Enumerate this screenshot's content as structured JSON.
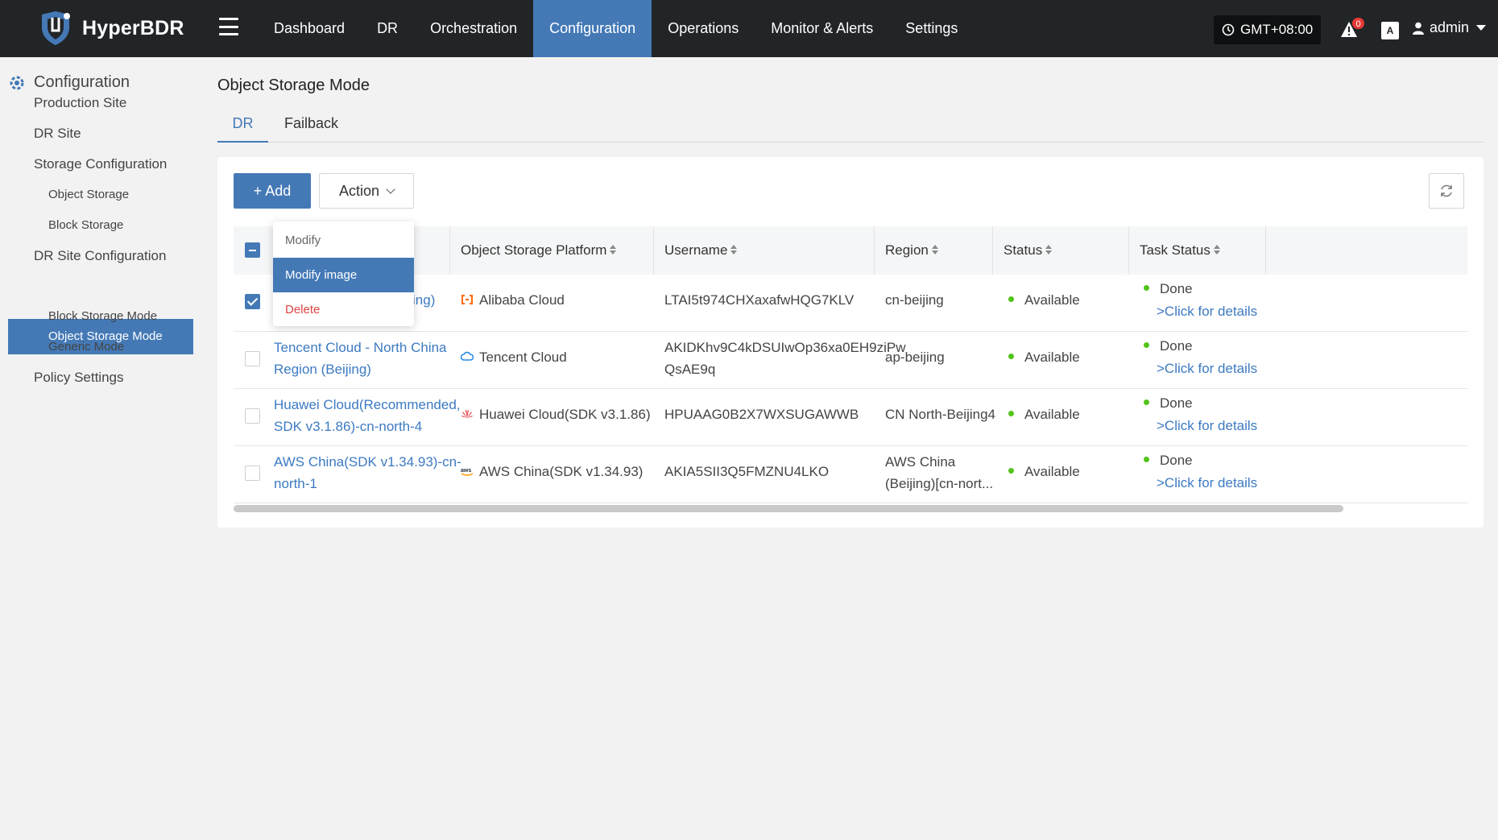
{
  "app": {
    "name": "HyperBDR"
  },
  "nav": {
    "items": [
      "Dashboard",
      "DR",
      "Orchestration",
      "Configuration",
      "Operations",
      "Monitor & Alerts",
      "Settings"
    ],
    "active": "Configuration"
  },
  "header": {
    "timezone": "GMT+08:00",
    "alert_count": "0",
    "lang_icon": "A",
    "user": "admin"
  },
  "sidebar": {
    "title": "Configuration",
    "items": {
      "production_site": "Production Site",
      "dr_site": "DR Site",
      "storage_configuration": "Storage Configuration",
      "object_storage": "Object Storage",
      "block_storage": "Block Storage",
      "dr_site_configuration": "DR Site Configuration",
      "object_storage_mode": "Object Storage Mode",
      "block_storage_mode": "Block Storage Mode",
      "generic_mode": "Generic Mode",
      "policy_settings": "Policy Settings"
    }
  },
  "page": {
    "title": "Object Storage Mode",
    "tabs": [
      "DR",
      "Failback"
    ]
  },
  "toolbar": {
    "add_label": "+ Add",
    "action_label": "Action"
  },
  "dropdown": {
    "items": [
      "Modify",
      "Modify image",
      "Delete"
    ]
  },
  "table": {
    "headers": {
      "platform": "Object Storage Platform",
      "username": "Username",
      "region": "Region",
      "status": "Status",
      "task_status": "Task Status"
    },
    "rows": [
      {
        "name_l1": "(Beijing)",
        "name_l2": "",
        "platform": "Alibaba Cloud",
        "username_l1": "LTAI5t974CHXaxafwHQG7KLV",
        "username_l2": "",
        "region_l1": "cn-beijing",
        "region_l2": "",
        "status": "Available",
        "task_status": "Done",
        "task_link": ">Click for details",
        "checked": true
      },
      {
        "name_l1": "Tencent Cloud - North China",
        "name_l2": "Region (Beijing)",
        "platform": "Tencent Cloud",
        "username_l1": "AKIDKhv9C4kDSUIwOp36xa0EH9ziPw",
        "username_l2": "QsAE9q",
        "region_l1": "ap-beijing",
        "region_l2": "",
        "status": "Available",
        "task_status": "Done",
        "task_link": ">Click for details",
        "checked": false
      },
      {
        "name_l1": "Huawei Cloud(Recommended,",
        "name_l2": "SDK v3.1.86)-cn-north-4",
        "platform": "Huawei Cloud(SDK v3.1.86)",
        "username_l1": "HPUAAG0B2X7WXSUGAWWB",
        "username_l2": "",
        "region_l1": "CN North-Beijing4",
        "region_l2": "",
        "status": "Available",
        "task_status": "Done",
        "task_link": ">Click for details",
        "checked": false
      },
      {
        "name_l1": "AWS China(SDK v1.34.93)-cn-",
        "name_l2": "north-1",
        "platform": "AWS China(SDK v1.34.93)",
        "username_l1": "AKIA5SII3Q5FMZNU4LKO",
        "username_l2": "",
        "region_l1": "AWS China",
        "region_l2": "(Beijing)[cn-nort...",
        "status": "Available",
        "task_status": "Done",
        "task_link": ">Click for details",
        "checked": false
      }
    ]
  },
  "colors": {
    "accent": "#4479b6",
    "topbar": "#222527",
    "available": "#52c41a",
    "danger": "#e04444",
    "link": "#3c7ac2"
  }
}
